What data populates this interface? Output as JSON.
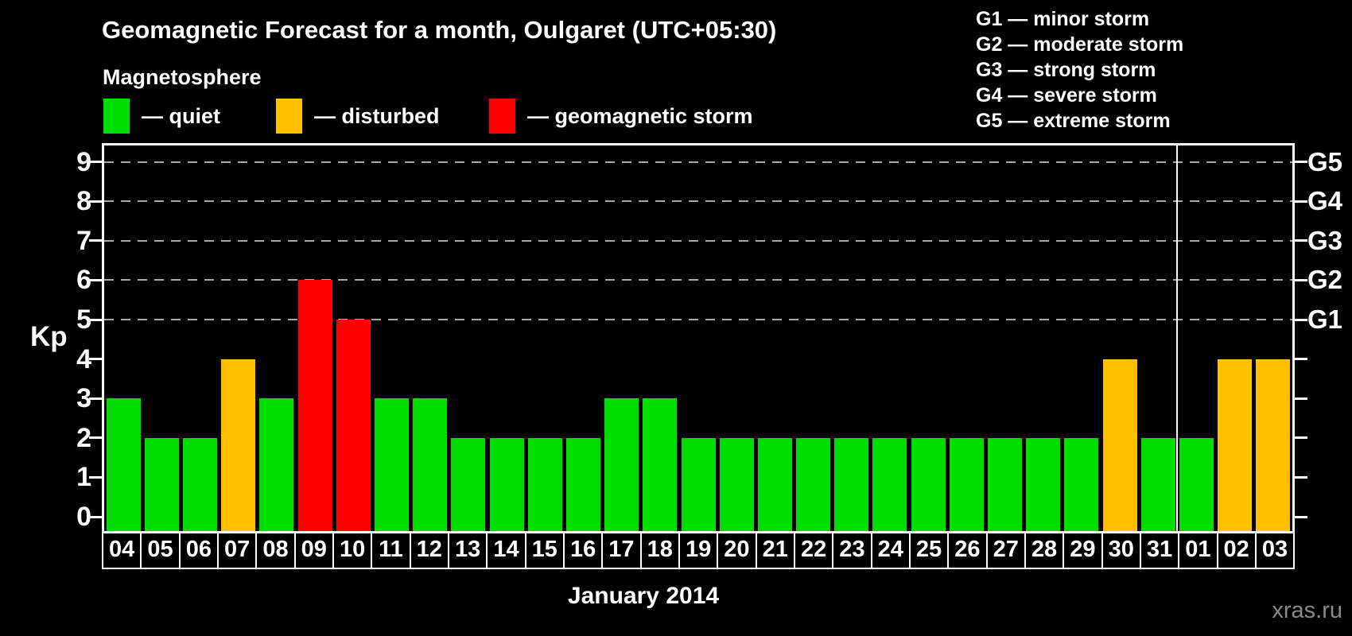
{
  "header": {
    "title": "Geomagnetic Forecast for a month, Oulgaret (UTC+05:30)",
    "subtitle": "Magnetosphere"
  },
  "legend": {
    "items": [
      {
        "key": "quiet",
        "label": "— quiet",
        "color": "#00dd00"
      },
      {
        "key": "disturbed",
        "label": "— disturbed",
        "color": "#ffc000"
      },
      {
        "key": "storm",
        "label": "— geomagnetic storm",
        "color": "#ff0000"
      }
    ]
  },
  "g_scale_legend": [
    "G1 — minor storm",
    "G2 — moderate storm",
    "G3 — strong storm",
    "G4 — severe storm",
    "G5 — extreme storm"
  ],
  "watermark": "xras.ru",
  "chart_data": {
    "type": "bar",
    "title": "Geomagnetic Forecast for a month, Oulgaret (UTC+05:30)",
    "xlabel": "January 2014",
    "ylabel": "Kp",
    "ylim": [
      0,
      9
    ],
    "y_ticks": [
      0,
      1,
      2,
      3,
      4,
      5,
      6,
      7,
      8,
      9
    ],
    "grid": "dashed horizontal gridlines at Kp 5,6,7,8,9 only",
    "legend_position": "top-left",
    "categories": [
      "04",
      "05",
      "06",
      "07",
      "08",
      "09",
      "10",
      "11",
      "12",
      "13",
      "14",
      "15",
      "16",
      "17",
      "18",
      "19",
      "20",
      "21",
      "22",
      "23",
      "24",
      "25",
      "26",
      "27",
      "28",
      "29",
      "30",
      "31",
      "01",
      "02",
      "03"
    ],
    "values": [
      3,
      2,
      2,
      4,
      3,
      6,
      5,
      3,
      3,
      2,
      2,
      2,
      2,
      3,
      3,
      2,
      2,
      2,
      2,
      2,
      2,
      2,
      2,
      2,
      2,
      2,
      4,
      2,
      2,
      4,
      4
    ],
    "statuses": [
      "quiet",
      "quiet",
      "quiet",
      "disturbed",
      "quiet",
      "storm",
      "storm",
      "quiet",
      "quiet",
      "quiet",
      "quiet",
      "quiet",
      "quiet",
      "quiet",
      "quiet",
      "quiet",
      "quiet",
      "quiet",
      "quiet",
      "quiet",
      "quiet",
      "quiet",
      "quiet",
      "quiet",
      "quiet",
      "quiet",
      "disturbed",
      "quiet",
      "quiet",
      "disturbed",
      "disturbed"
    ],
    "right_axis_labels": [
      {
        "value": 5,
        "label": "G1"
      },
      {
        "value": 6,
        "label": "G2"
      },
      {
        "value": 7,
        "label": "G3"
      },
      {
        "value": 8,
        "label": "G4"
      },
      {
        "value": 9,
        "label": "G5"
      }
    ],
    "storm_gridline_values": [
      5,
      6,
      7,
      8,
      9
    ],
    "month_separator_after_index": 27
  }
}
